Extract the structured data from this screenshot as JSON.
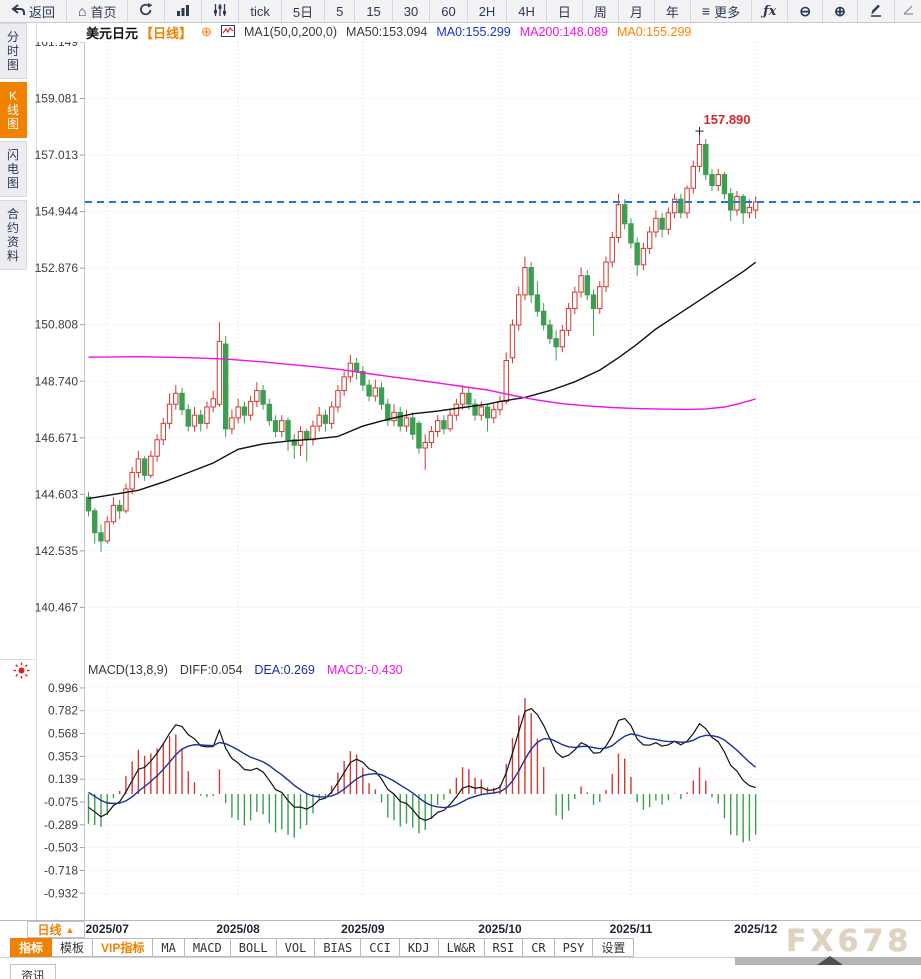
{
  "toolbar": {
    "items": [
      {
        "label": "返回",
        "icon": "back-arrow"
      },
      {
        "label": "首页",
        "icon": "home"
      },
      {
        "label": "",
        "icon": "refresh"
      },
      {
        "label": "",
        "icon": "bar-chart"
      },
      {
        "label": "",
        "icon": "sliders"
      },
      {
        "label": "tick"
      },
      {
        "label": "5日"
      },
      {
        "label": "5"
      },
      {
        "label": "15"
      },
      {
        "label": "30"
      },
      {
        "label": "60"
      },
      {
        "label": "2H"
      },
      {
        "label": "4H"
      },
      {
        "label": "日"
      },
      {
        "label": "周"
      },
      {
        "label": "月"
      },
      {
        "label": "年"
      },
      {
        "label": "更多",
        "icon": "menu"
      },
      {
        "label": "ƒx",
        "icon": "fx"
      },
      {
        "label": "",
        "icon": "zoom-out"
      },
      {
        "label": "",
        "icon": "zoom-in"
      },
      {
        "label": "",
        "icon": "pencil"
      },
      {
        "label": "",
        "icon": "pencil-alt"
      }
    ],
    "menu_glyph": "≡",
    "zoom_out_glyph": "⊖",
    "zoom_in_glyph": "⊕",
    "home_glyph": "⌂"
  },
  "sidebar": {
    "items": [
      {
        "label": "分时图",
        "active": false
      },
      {
        "label": "K线图",
        "active": true
      },
      {
        "label": "闪电图",
        "active": false
      },
      {
        "label": "合约资料",
        "active": false
      }
    ]
  },
  "title_bar": {
    "symbol": "美元日元",
    "period": "【日线】",
    "add_glyph": "⊕",
    "ma_group": "MA1(50,0,200,0)",
    "ma50": "MA50:153.094",
    "ma0_blue": "MA0:155.299",
    "ma200": "MA200:148.089",
    "ma0_orange": "MA0:155.299"
  },
  "macd_header": {
    "name": "MACD(13,8,9)",
    "diff": "DIFF:0.054",
    "dea": "DEA:0.269",
    "macd": "MACD:-0.430"
  },
  "period_selector": {
    "label": "日线",
    "arrow": "▲"
  },
  "bottom_tabs": {
    "items": [
      {
        "label": "指标"
      },
      {
        "label": "模板"
      },
      {
        "label": "VIP指标"
      },
      {
        "label": "MA"
      },
      {
        "label": "MACD"
      },
      {
        "label": "BOLL"
      },
      {
        "label": "VOL"
      },
      {
        "label": "BIAS"
      },
      {
        "label": "CCI"
      },
      {
        "label": "KDJ"
      },
      {
        "label": "LW&R"
      },
      {
        "label": "RSI"
      },
      {
        "label": "CR"
      },
      {
        "label": "PSY"
      },
      {
        "label": "设置"
      }
    ]
  },
  "status_bar": {
    "news_label": "资讯"
  },
  "watermark": "FX678",
  "chart_data": {
    "type": "candlestick",
    "title": "美元日元 USD/JPY 日线",
    "colors": {
      "up": "#d03a32",
      "down": "#3c9e50",
      "ma50": "#111111",
      "ma200": "#ef12e8",
      "diff_line": "#111111",
      "dea_line": "#1c2f9e",
      "price_line": "#1778e6",
      "annotation": "#d8262a"
    },
    "y_ticks": [
      161.149,
      159.081,
      157.013,
      154.944,
      152.876,
      150.808,
      148.74,
      146.671,
      144.603,
      142.535,
      140.467
    ],
    "x_labels": [
      {
        "label": "2025/07",
        "index": 3
      },
      {
        "label": "2025/08",
        "index": 24
      },
      {
        "label": "2025/09",
        "index": 44
      },
      {
        "label": "2025/10",
        "index": 66
      },
      {
        "label": "2025/11",
        "index": 87
      },
      {
        "label": "2025/12",
        "index": 107
      }
    ],
    "current_price": 155.299,
    "peak_annotation": {
      "text": "157.890",
      "index": 98,
      "price": 157.89
    },
    "candles_ohlc": [
      [
        144.5,
        144.7,
        143.8,
        144.0
      ],
      [
        144.0,
        144.1,
        142.8,
        143.2
      ],
      [
        143.2,
        143.5,
        142.5,
        142.9
      ],
      [
        142.9,
        143.8,
        142.8,
        143.6
      ],
      [
        143.6,
        144.5,
        143.5,
        144.2
      ],
      [
        144.2,
        144.4,
        143.7,
        144.0
      ],
      [
        144.0,
        145.0,
        143.9,
        144.8
      ],
      [
        144.8,
        145.6,
        144.6,
        145.4
      ],
      [
        145.4,
        146.2,
        145.2,
        145.9
      ],
      [
        145.9,
        146.0,
        145.1,
        145.3
      ],
      [
        145.3,
        146.2,
        145.2,
        146.0
      ],
      [
        146.0,
        146.8,
        145.8,
        146.6
      ],
      [
        146.6,
        147.4,
        146.4,
        147.2
      ],
      [
        147.2,
        148.3,
        147.0,
        147.9
      ],
      [
        147.9,
        148.6,
        147.7,
        148.3
      ],
      [
        148.3,
        148.5,
        147.5,
        147.7
      ],
      [
        147.7,
        147.9,
        146.9,
        147.1
      ],
      [
        147.1,
        147.8,
        146.9,
        147.5
      ],
      [
        147.5,
        147.7,
        146.9,
        147.2
      ],
      [
        147.2,
        148.0,
        147.0,
        147.8
      ],
      [
        147.8,
        148.4,
        147.6,
        148.1
      ],
      [
        147.9,
        150.9,
        147.8,
        150.2
      ],
      [
        150.1,
        150.4,
        146.7,
        147.0
      ],
      [
        147.0,
        147.7,
        146.8,
        147.4
      ],
      [
        147.4,
        148.1,
        147.2,
        147.8
      ],
      [
        147.8,
        148.0,
        147.2,
        147.5
      ],
      [
        147.5,
        148.2,
        147.3,
        148.0
      ],
      [
        148.0,
        148.7,
        147.8,
        148.4
      ],
      [
        148.4,
        148.6,
        147.7,
        147.9
      ],
      [
        147.9,
        148.1,
        147.1,
        147.3
      ],
      [
        147.3,
        147.5,
        146.7,
        146.9
      ],
      [
        146.9,
        147.5,
        146.7,
        147.3
      ],
      [
        147.3,
        147.4,
        146.2,
        146.6
      ],
      [
        146.6,
        146.8,
        145.9,
        146.4
      ],
      [
        146.4,
        147.1,
        146.0,
        146.9
      ],
      [
        146.9,
        147.0,
        145.8,
        146.6
      ],
      [
        146.6,
        147.3,
        146.4,
        147.1
      ],
      [
        147.1,
        147.8,
        146.9,
        147.5
      ],
      [
        147.5,
        147.7,
        146.9,
        147.2
      ],
      [
        147.2,
        148.0,
        147.0,
        147.8
      ],
      [
        147.8,
        148.6,
        147.6,
        148.4
      ],
      [
        148.4,
        149.1,
        148.2,
        148.9
      ],
      [
        148.9,
        149.7,
        148.7,
        149.4
      ],
      [
        149.4,
        149.6,
        148.8,
        149.1
      ],
      [
        149.1,
        149.3,
        148.4,
        148.6
      ],
      [
        148.6,
        148.8,
        148.0,
        148.2
      ],
      [
        148.2,
        148.8,
        148.0,
        148.5
      ],
      [
        148.5,
        148.7,
        147.7,
        147.9
      ],
      [
        147.9,
        148.1,
        147.1,
        147.3
      ],
      [
        147.3,
        147.9,
        147.1,
        147.6
      ],
      [
        147.6,
        147.8,
        146.9,
        147.1
      ],
      [
        147.1,
        147.7,
        146.9,
        147.4
      ],
      [
        147.4,
        147.6,
        146.6,
        146.8
      ],
      [
        147.2,
        147.3,
        146.1,
        146.3
      ],
      [
        146.3,
        146.8,
        145.5,
        146.5
      ],
      [
        146.5,
        147.1,
        146.3,
        146.9
      ],
      [
        146.9,
        147.5,
        146.7,
        147.3
      ],
      [
        147.3,
        147.5,
        146.8,
        147.0
      ],
      [
        147.0,
        147.7,
        146.9,
        147.5
      ],
      [
        147.5,
        148.1,
        147.3,
        147.9
      ],
      [
        147.9,
        148.6,
        147.7,
        148.3
      ],
      [
        148.3,
        148.5,
        147.7,
        147.9
      ],
      [
        147.9,
        148.1,
        147.3,
        147.5
      ],
      [
        147.5,
        148.0,
        147.3,
        147.8
      ],
      [
        147.8,
        147.9,
        146.9,
        147.4
      ],
      [
        147.4,
        147.9,
        147.2,
        147.7
      ],
      [
        147.7,
        148.2,
        147.5,
        148.0
      ],
      [
        148.0,
        149.8,
        147.9,
        149.5
      ],
      [
        149.6,
        151.0,
        149.4,
        150.8
      ],
      [
        150.8,
        152.2,
        150.6,
        151.9
      ],
      [
        151.9,
        153.3,
        151.7,
        152.9
      ],
      [
        152.9,
        153.1,
        151.6,
        151.9
      ],
      [
        151.9,
        152.4,
        151.1,
        151.3
      ],
      [
        151.3,
        151.6,
        150.6,
        150.8
      ],
      [
        150.8,
        151.0,
        150.1,
        150.3
      ],
      [
        150.3,
        150.6,
        149.5,
        150.0
      ],
      [
        150.0,
        150.8,
        149.8,
        150.6
      ],
      [
        150.6,
        151.6,
        150.4,
        151.4
      ],
      [
        151.4,
        152.2,
        151.2,
        152.0
      ],
      [
        152.0,
        152.9,
        151.8,
        152.6
      ],
      [
        152.6,
        152.8,
        151.7,
        151.9
      ],
      [
        151.9,
        152.1,
        150.4,
        151.4
      ],
      [
        151.4,
        152.4,
        151.2,
        152.2
      ],
      [
        152.2,
        153.3,
        152.0,
        153.1
      ],
      [
        153.1,
        154.2,
        152.9,
        154.0
      ],
      [
        154.0,
        155.6,
        153.8,
        155.2
      ],
      [
        155.2,
        155.4,
        154.3,
        154.5
      ],
      [
        154.5,
        154.7,
        153.6,
        153.8
      ],
      [
        153.8,
        154.0,
        152.6,
        153.0
      ],
      [
        153.0,
        153.8,
        152.8,
        153.6
      ],
      [
        153.6,
        154.4,
        153.4,
        154.2
      ],
      [
        154.2,
        155.0,
        154.0,
        154.7
      ],
      [
        154.7,
        154.9,
        154.0,
        154.3
      ],
      [
        154.3,
        155.1,
        154.1,
        154.9
      ],
      [
        154.9,
        155.6,
        154.7,
        155.4
      ],
      [
        155.4,
        155.6,
        154.7,
        154.9
      ],
      [
        154.9,
        155.9,
        154.7,
        155.8
      ],
      [
        155.8,
        156.8,
        155.6,
        156.6
      ],
      [
        156.6,
        157.89,
        156.4,
        157.4
      ],
      [
        157.4,
        157.6,
        156.1,
        156.3
      ],
      [
        156.3,
        156.5,
        155.7,
        155.9
      ],
      [
        155.9,
        156.5,
        155.7,
        156.3
      ],
      [
        156.3,
        156.4,
        155.4,
        155.6
      ],
      [
        155.6,
        155.8,
        154.6,
        155.0
      ],
      [
        155.0,
        155.7,
        154.8,
        155.5
      ],
      [
        155.5,
        155.6,
        154.5,
        154.9
      ],
      [
        154.9,
        155.4,
        154.7,
        155.1
      ],
      [
        155.0,
        155.5,
        154.7,
        155.3
      ]
    ],
    "ma50_points": [
      [
        0,
        144.45
      ],
      [
        4,
        144.6
      ],
      [
        8,
        144.75
      ],
      [
        12,
        145.05
      ],
      [
        16,
        145.4
      ],
      [
        20,
        145.75
      ],
      [
        24,
        146.25
      ],
      [
        28,
        146.45
      ],
      [
        32,
        146.55
      ],
      [
        36,
        146.62
      ],
      [
        40,
        146.72
      ],
      [
        44,
        147.1
      ],
      [
        48,
        147.35
      ],
      [
        52,
        147.55
      ],
      [
        56,
        147.65
      ],
      [
        60,
        147.78
      ],
      [
        64,
        147.9
      ],
      [
        66,
        148.0
      ],
      [
        70,
        148.15
      ],
      [
        74,
        148.4
      ],
      [
        78,
        148.72
      ],
      [
        82,
        149.15
      ],
      [
        85,
        149.6
      ],
      [
        88,
        150.1
      ],
      [
        91,
        150.65
      ],
      [
        94,
        151.1
      ],
      [
        97,
        151.55
      ],
      [
        100,
        152.0
      ],
      [
        103,
        152.45
      ],
      [
        105,
        152.75
      ],
      [
        107,
        153.09
      ]
    ],
    "ma200_points": [
      [
        0,
        149.62
      ],
      [
        8,
        149.64
      ],
      [
        16,
        149.6
      ],
      [
        22,
        149.55
      ],
      [
        28,
        149.45
      ],
      [
        34,
        149.32
      ],
      [
        40,
        149.18
      ],
      [
        44,
        149.05
      ],
      [
        48,
        148.92
      ],
      [
        52,
        148.8
      ],
      [
        56,
        148.68
      ],
      [
        60,
        148.55
      ],
      [
        64,
        148.42
      ],
      [
        66,
        148.32
      ],
      [
        69,
        148.18
      ],
      [
        72,
        148.05
      ],
      [
        76,
        147.92
      ],
      [
        80,
        147.84
      ],
      [
        84,
        147.78
      ],
      [
        88,
        147.74
      ],
      [
        92,
        147.72
      ],
      [
        96,
        147.71
      ],
      [
        99,
        147.73
      ],
      [
        102,
        147.8
      ],
      [
        104,
        147.9
      ],
      [
        107,
        148.09
      ]
    ],
    "macd": {
      "params": "13,8,9",
      "y_ticks": [
        0.996,
        0.782,
        0.568,
        0.353,
        0.139,
        -0.075,
        -0.289,
        -0.503,
        -0.718,
        -0.932
      ],
      "diff_last": 0.054,
      "dea_last": 0.269,
      "hist_last": -0.43,
      "ema_short": 8,
      "ema_long": 13,
      "signal": 9,
      "seed_short": 143.95,
      "seed_long": 144.1,
      "seed_dea": 0.05
    }
  }
}
